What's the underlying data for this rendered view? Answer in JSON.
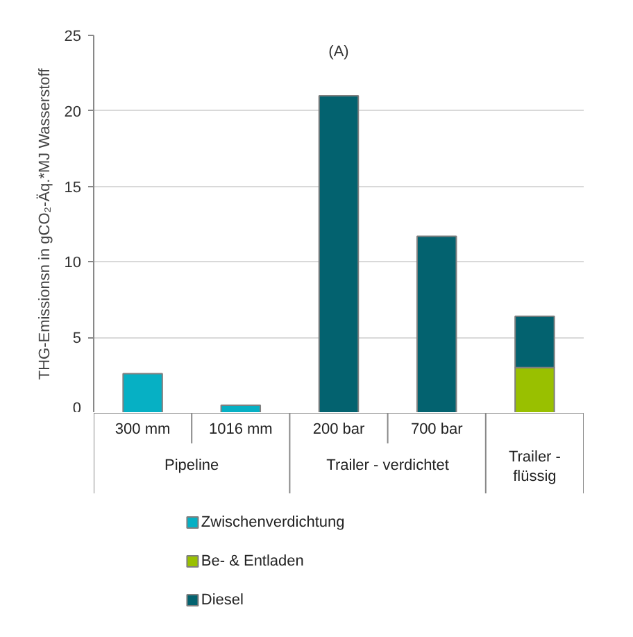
{
  "chart_data": {
    "type": "bar",
    "stacked": true,
    "ylabel": "THG-Emissionsn in gCO₂-Äq.*MJ Wasserstoff",
    "categories": [
      "300 mm",
      "1016 mm",
      "200 bar",
      "700 bar",
      null
    ],
    "series": [
      {
        "name": "Zwischenverdichtung",
        "color": "#06b0c4",
        "values": [
          2.6,
          0.5,
          null,
          null,
          null
        ]
      },
      {
        "name": "Be- & Entladen",
        "color": "#99c000",
        "values": [
          null,
          null,
          null,
          null,
          3.0
        ]
      },
      {
        "name": "Diesel",
        "color": "#03626f",
        "values": [
          null,
          null,
          21.0,
          11.7,
          3.4
        ]
      }
    ],
    "ylim": [
      0,
      25
    ],
    "yticks": [
      0,
      5,
      10,
      15,
      20,
      25
    ],
    "grid": "y",
    "legend": "bottom",
    "annotations": [
      "(A)",
      "Pipeline",
      "Trailer - verdichtet",
      "Trailer - flüssig"
    ]
  }
}
